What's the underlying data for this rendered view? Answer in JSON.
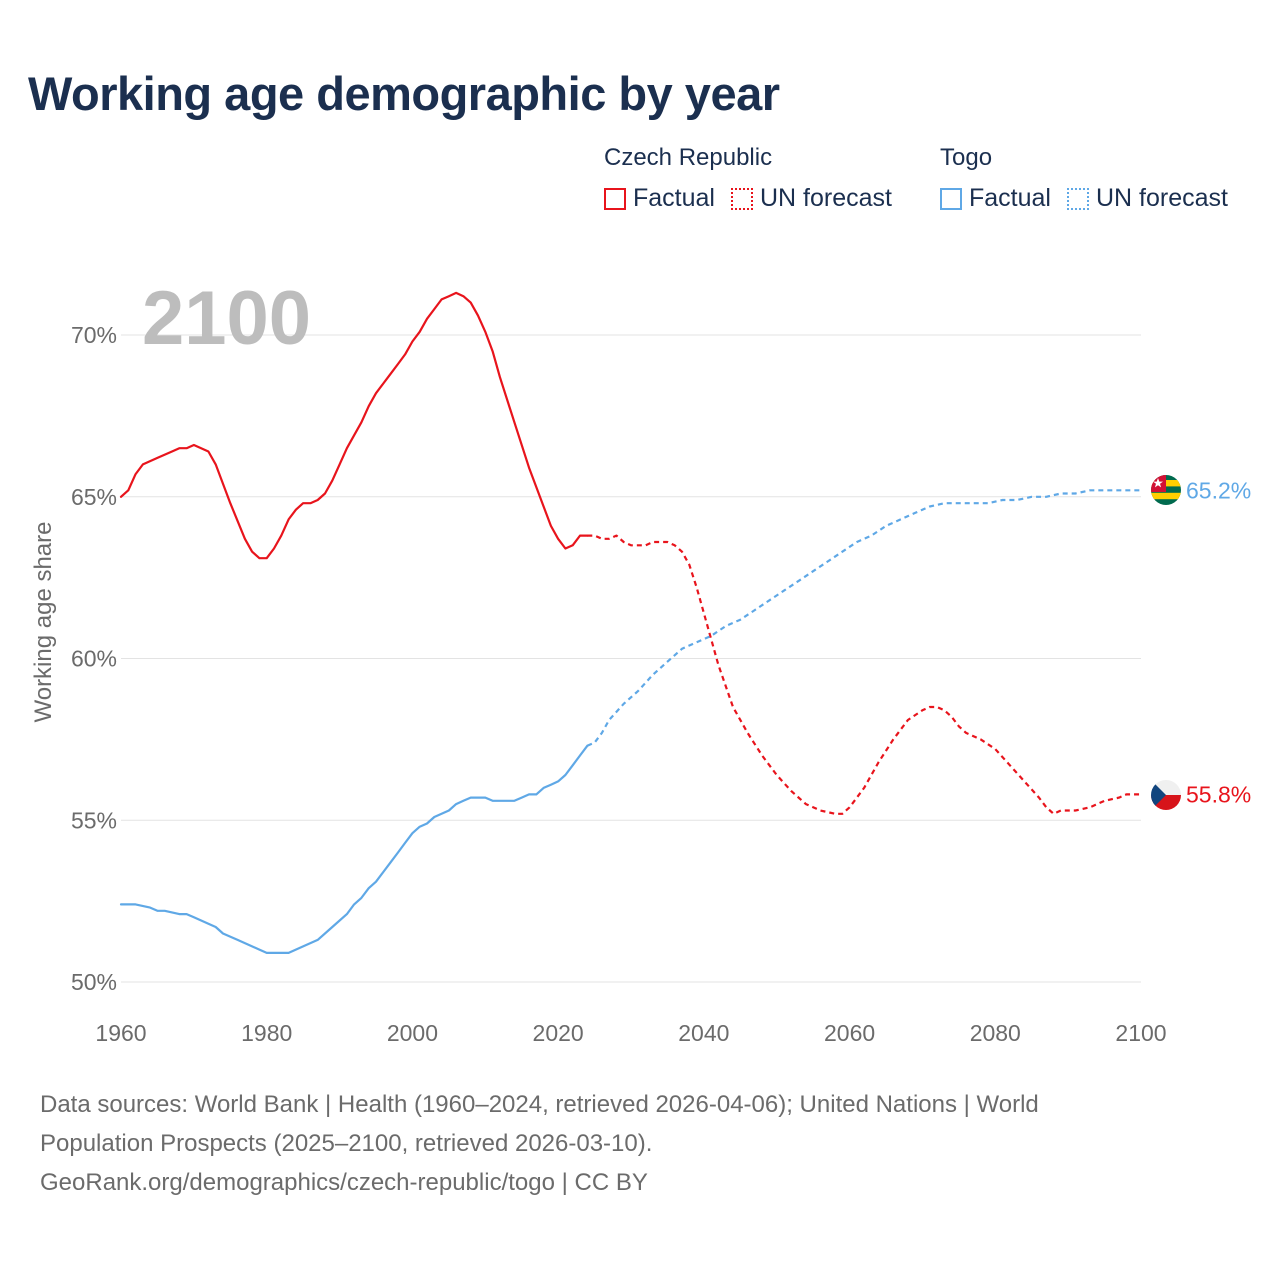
{
  "title": "Working age demographic by year",
  "legend": {
    "groups": [
      {
        "country": "Czech Republic",
        "color": "#e8141c",
        "factual_label": "Factual",
        "forecast_label": "UN forecast"
      },
      {
        "country": "Togo",
        "color": "#5fa8e6",
        "factual_label": "Factual",
        "forecast_label": "UN forecast"
      }
    ]
  },
  "footer": {
    "line1": "Data sources: World Bank | Health (1960–2024, retrieved 2026-04-06); United Nations | World",
    "line2": "Population Prospects (2025–2100, retrieved 2026-03-10).",
    "line3": "GeoRank.org/demographics/czech-republic/togo | CC BY"
  },
  "chart_data": {
    "type": "line",
    "title": "Working age demographic by year",
    "year_watermark": "2100",
    "xlabel": "",
    "ylabel": "Working age share",
    "xlim": [
      1960,
      2100
    ],
    "ylim": [
      50,
      72
    ],
    "x_ticks": [
      1960,
      1980,
      2000,
      2020,
      2040,
      2060,
      2080,
      2100
    ],
    "y_ticks": [
      50,
      55,
      60,
      65,
      70
    ],
    "y_tick_labels": [
      "50%",
      "55%",
      "60%",
      "65%",
      "70%"
    ],
    "grid": true,
    "series": [
      {
        "name": "Czech Republic",
        "color": "#e8141c",
        "end_label": "55.8%",
        "flag": "czech-republic",
        "factual": {
          "years": [
            1960,
            1961,
            1962,
            1963,
            1965,
            1967,
            1968,
            1969,
            1970,
            1972,
            1973,
            1975,
            1977,
            1978,
            1979,
            1980,
            1981,
            1982,
            1983,
            1984,
            1985,
            1986,
            1987,
            1988,
            1989,
            1990,
            1991,
            1992,
            1993,
            1994,
            1995,
            1996,
            1997,
            1998,
            1999,
            2000,
            2001,
            2002,
            2003,
            2004,
            2005,
            2006,
            2007,
            2008,
            2009,
            2010,
            2011,
            2012,
            2014,
            2016,
            2018,
            2019,
            2020,
            2021,
            2022,
            2023,
            2024
          ],
          "values": [
            65.0,
            65.2,
            65.7,
            66.0,
            66.2,
            66.4,
            66.5,
            66.5,
            66.6,
            66.4,
            66.0,
            64.8,
            63.7,
            63.3,
            63.1,
            63.1,
            63.4,
            63.8,
            64.3,
            64.6,
            64.8,
            64.8,
            64.9,
            65.1,
            65.5,
            66.0,
            66.5,
            66.9,
            67.3,
            67.8,
            68.2,
            68.5,
            68.8,
            69.1,
            69.4,
            69.8,
            70.1,
            70.5,
            70.8,
            71.1,
            71.2,
            71.3,
            71.2,
            71.0,
            70.6,
            70.1,
            69.5,
            68.7,
            67.3,
            65.9,
            64.7,
            64.1,
            63.7,
            63.4,
            63.5,
            63.8,
            63.8
          ]
        },
        "forecast": {
          "years": [
            2024,
            2025,
            2026,
            2027,
            2028,
            2029,
            2030,
            2031,
            2032,
            2033,
            2034,
            2035,
            2036,
            2037,
            2038,
            2039,
            2040,
            2042,
            2044,
            2046,
            2048,
            2050,
            2052,
            2054,
            2056,
            2058,
            2059,
            2060,
            2062,
            2064,
            2066,
            2068,
            2070,
            2071,
            2072,
            2073,
            2074,
            2075,
            2076,
            2078,
            2080,
            2082,
            2084,
            2086,
            2087,
            2088,
            2089,
            2091,
            2093,
            2095,
            2097,
            2098,
            2100
          ],
          "values": [
            63.8,
            63.8,
            63.7,
            63.7,
            63.8,
            63.6,
            63.5,
            63.5,
            63.5,
            63.6,
            63.6,
            63.6,
            63.5,
            63.3,
            62.9,
            62.2,
            61.4,
            59.8,
            58.5,
            57.7,
            57.0,
            56.4,
            55.9,
            55.5,
            55.3,
            55.2,
            55.2,
            55.4,
            56.0,
            56.8,
            57.5,
            58.1,
            58.4,
            58.5,
            58.5,
            58.4,
            58.2,
            57.9,
            57.7,
            57.5,
            57.2,
            56.7,
            56.2,
            55.7,
            55.4,
            55.2,
            55.3,
            55.3,
            55.4,
            55.6,
            55.7,
            55.8,
            55.8
          ]
        }
      },
      {
        "name": "Togo",
        "color": "#5fa8e6",
        "end_label": "65.2%",
        "flag": "togo",
        "factual": {
          "years": [
            1960,
            1962,
            1964,
            1965,
            1966,
            1968,
            1969,
            1970,
            1972,
            1973,
            1974,
            1976,
            1978,
            1979,
            1980,
            1981,
            1982,
            1983,
            1985,
            1987,
            1989,
            1991,
            1992,
            1993,
            1994,
            1995,
            1996,
            1997,
            1998,
            1999,
            2000,
            2001,
            2002,
            2003,
            2004,
            2005,
            2006,
            2007,
            2008,
            2009,
            2010,
            2011,
            2012,
            2013,
            2014,
            2015,
            2016,
            2017,
            2018,
            2019,
            2020,
            2021,
            2022,
            2023,
            2024
          ],
          "values": [
            52.4,
            52.4,
            52.3,
            52.2,
            52.2,
            52.1,
            52.1,
            52.0,
            51.8,
            51.7,
            51.5,
            51.3,
            51.1,
            51.0,
            50.9,
            50.9,
            50.9,
            50.9,
            51.1,
            51.3,
            51.7,
            52.1,
            52.4,
            52.6,
            52.9,
            53.1,
            53.4,
            53.7,
            54.0,
            54.3,
            54.6,
            54.8,
            54.9,
            55.1,
            55.2,
            55.3,
            55.5,
            55.6,
            55.7,
            55.7,
            55.7,
            55.6,
            55.6,
            55.6,
            55.6,
            55.7,
            55.8,
            55.8,
            56.0,
            56.1,
            56.2,
            56.4,
            56.7,
            57.0,
            57.3
          ]
        },
        "forecast": {
          "years": [
            2024,
            2025,
            2026,
            2027,
            2029,
            2031,
            2033,
            2035,
            2037,
            2039,
            2041,
            2043,
            2045,
            2047,
            2049,
            2051,
            2053,
            2055,
            2057,
            2059,
            2061,
            2063,
            2065,
            2067,
            2069,
            2071,
            2073,
            2075,
            2077,
            2079,
            2081,
            2083,
            2085,
            2087,
            2089,
            2091,
            2093,
            2095,
            2097,
            2100
          ],
          "values": [
            57.3,
            57.4,
            57.7,
            58.1,
            58.6,
            59.0,
            59.5,
            59.9,
            60.3,
            60.5,
            60.7,
            61.0,
            61.2,
            61.5,
            61.8,
            62.1,
            62.4,
            62.7,
            63.0,
            63.3,
            63.6,
            63.8,
            64.1,
            64.3,
            64.5,
            64.7,
            64.8,
            64.8,
            64.8,
            64.8,
            64.9,
            64.9,
            65.0,
            65.0,
            65.1,
            65.1,
            65.2,
            65.2,
            65.2,
            65.2
          ]
        }
      }
    ]
  }
}
